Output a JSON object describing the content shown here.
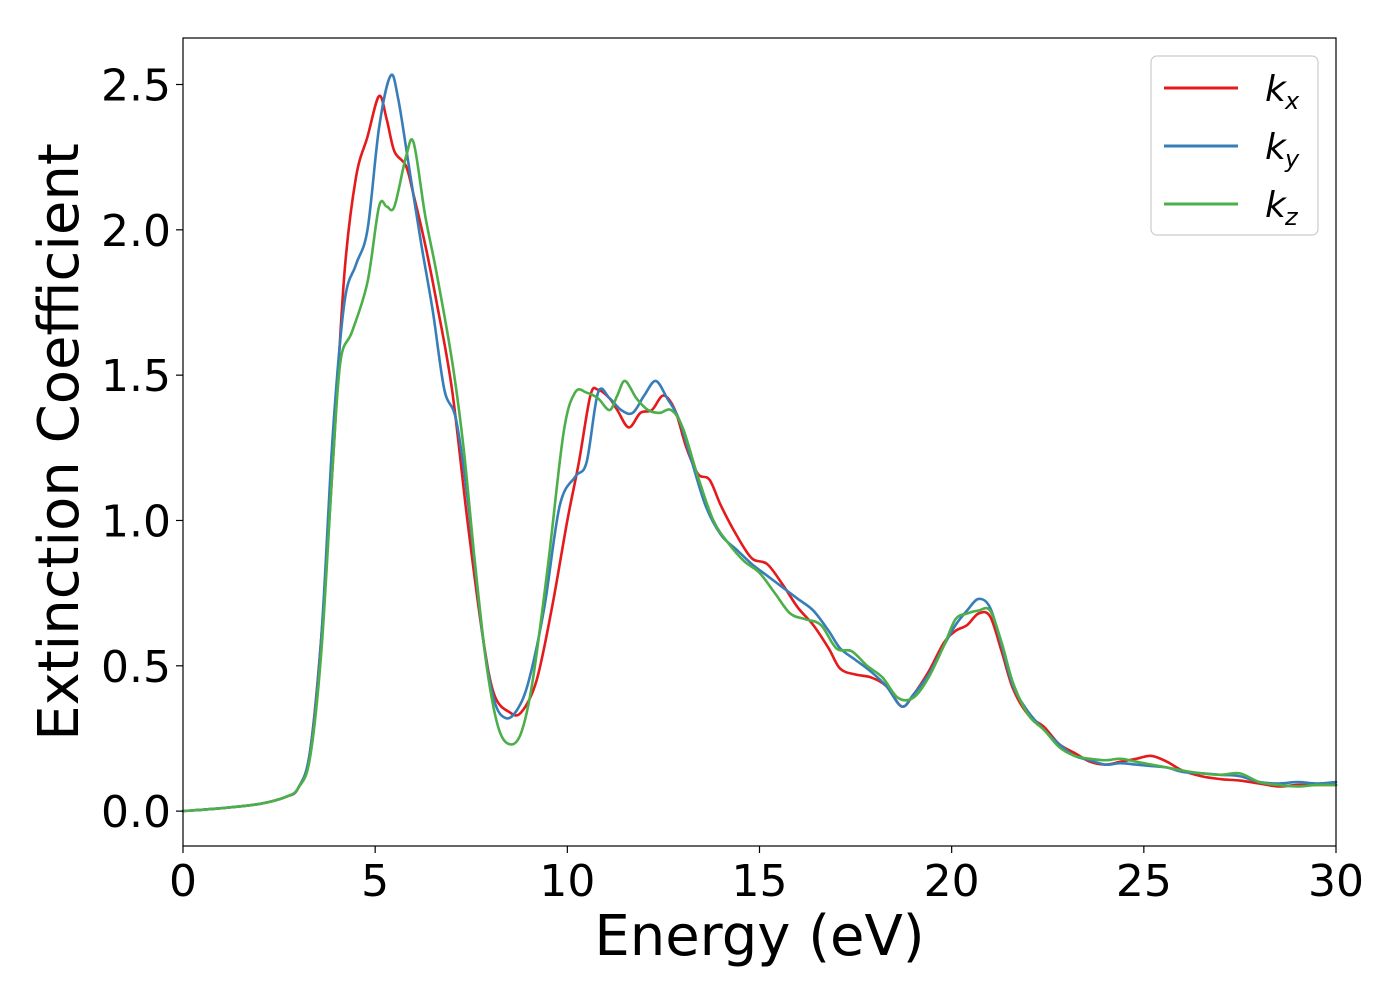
{
  "chart_data": {
    "type": "line",
    "xlabel": "Energy (eV)",
    "ylabel": "Extinction Coefficient",
    "xlim": [
      0,
      30
    ],
    "ylim": [
      -0.12,
      2.66
    ],
    "xticks": [
      0,
      5,
      10,
      15,
      20,
      25,
      30
    ],
    "xtick_labels": [
      "0",
      "5",
      "10",
      "15",
      "20",
      "25",
      "30"
    ],
    "yticks": [
      0.0,
      0.5,
      1.0,
      1.5,
      2.0,
      2.5
    ],
    "ytick_labels": [
      "0.0",
      "0.5",
      "1.0",
      "1.5",
      "2.0",
      "2.5"
    ],
    "grid": false,
    "legend_position": "top-right",
    "series": [
      {
        "name": "k_x",
        "legend_main": "k",
        "legend_sub": "x",
        "color": "#e41a1c",
        "points": [
          [
            0,
            0.0
          ],
          [
            1,
            0.01
          ],
          [
            2,
            0.025
          ],
          [
            2.7,
            0.05
          ],
          [
            3.0,
            0.08
          ],
          [
            3.3,
            0.2
          ],
          [
            3.6,
            0.6
          ],
          [
            3.9,
            1.2
          ],
          [
            4.2,
            1.85
          ],
          [
            4.5,
            2.18
          ],
          [
            4.8,
            2.32
          ],
          [
            5.1,
            2.46
          ],
          [
            5.3,
            2.38
          ],
          [
            5.5,
            2.27
          ],
          [
            5.8,
            2.22
          ],
          [
            6.0,
            2.12
          ],
          [
            6.3,
            1.95
          ],
          [
            6.6,
            1.75
          ],
          [
            7.0,
            1.45
          ],
          [
            7.4,
            1.0
          ],
          [
            7.8,
            0.6
          ],
          [
            8.1,
            0.4
          ],
          [
            8.5,
            0.34
          ],
          [
            8.8,
            0.34
          ],
          [
            9.2,
            0.45
          ],
          [
            9.6,
            0.7
          ],
          [
            10.0,
            1.0
          ],
          [
            10.3,
            1.2
          ],
          [
            10.6,
            1.43
          ],
          [
            10.8,
            1.45
          ],
          [
            11.1,
            1.42
          ],
          [
            11.3,
            1.38
          ],
          [
            11.6,
            1.32
          ],
          [
            11.9,
            1.37
          ],
          [
            12.2,
            1.38
          ],
          [
            12.5,
            1.43
          ],
          [
            12.8,
            1.38
          ],
          [
            13.1,
            1.25
          ],
          [
            13.4,
            1.16
          ],
          [
            13.7,
            1.14
          ],
          [
            14.0,
            1.05
          ],
          [
            14.4,
            0.95
          ],
          [
            14.8,
            0.87
          ],
          [
            15.2,
            0.85
          ],
          [
            15.6,
            0.78
          ],
          [
            16.0,
            0.7
          ],
          [
            16.4,
            0.64
          ],
          [
            16.8,
            0.56
          ],
          [
            17.1,
            0.49
          ],
          [
            17.5,
            0.47
          ],
          [
            17.9,
            0.46
          ],
          [
            18.3,
            0.43
          ],
          [
            18.7,
            0.36
          ],
          [
            19.0,
            0.4
          ],
          [
            19.4,
            0.48
          ],
          [
            19.8,
            0.58
          ],
          [
            20.1,
            0.62
          ],
          [
            20.4,
            0.64
          ],
          [
            20.7,
            0.68
          ],
          [
            21.0,
            0.67
          ],
          [
            21.3,
            0.55
          ],
          [
            21.6,
            0.42
          ],
          [
            22.0,
            0.33
          ],
          [
            22.4,
            0.29
          ],
          [
            22.8,
            0.23
          ],
          [
            23.2,
            0.2
          ],
          [
            23.6,
            0.17
          ],
          [
            24.0,
            0.16
          ],
          [
            24.4,
            0.17
          ],
          [
            24.8,
            0.18
          ],
          [
            25.2,
            0.19
          ],
          [
            25.6,
            0.17
          ],
          [
            26.0,
            0.14
          ],
          [
            26.5,
            0.12
          ],
          [
            27.0,
            0.11
          ],
          [
            27.5,
            0.105
          ],
          [
            28.0,
            0.095
          ],
          [
            28.5,
            0.085
          ],
          [
            29.0,
            0.09
          ],
          [
            29.5,
            0.09
          ],
          [
            30.0,
            0.09
          ]
        ]
      },
      {
        "name": "k_y",
        "legend_main": "k",
        "legend_sub": "y",
        "color": "#377eb8",
        "points": [
          [
            0,
            0.0
          ],
          [
            1,
            0.01
          ],
          [
            2,
            0.025
          ],
          [
            2.7,
            0.05
          ],
          [
            3.0,
            0.08
          ],
          [
            3.3,
            0.2
          ],
          [
            3.6,
            0.6
          ],
          [
            3.9,
            1.3
          ],
          [
            4.2,
            1.75
          ],
          [
            4.5,
            1.88
          ],
          [
            4.8,
            2.0
          ],
          [
            5.1,
            2.35
          ],
          [
            5.4,
            2.53
          ],
          [
            5.6,
            2.45
          ],
          [
            5.9,
            2.2
          ],
          [
            6.2,
            1.95
          ],
          [
            6.5,
            1.72
          ],
          [
            6.8,
            1.45
          ],
          [
            7.1,
            1.35
          ],
          [
            7.4,
            1.08
          ],
          [
            7.8,
            0.6
          ],
          [
            8.1,
            0.38
          ],
          [
            8.4,
            0.32
          ],
          [
            8.7,
            0.35
          ],
          [
            9.0,
            0.45
          ],
          [
            9.4,
            0.7
          ],
          [
            9.8,
            1.05
          ],
          [
            10.2,
            1.15
          ],
          [
            10.5,
            1.2
          ],
          [
            10.8,
            1.44
          ],
          [
            11.1,
            1.42
          ],
          [
            11.4,
            1.38
          ],
          [
            11.7,
            1.37
          ],
          [
            12.0,
            1.43
          ],
          [
            12.3,
            1.48
          ],
          [
            12.6,
            1.42
          ],
          [
            12.9,
            1.35
          ],
          [
            13.2,
            1.22
          ],
          [
            13.6,
            1.05
          ],
          [
            14.0,
            0.95
          ],
          [
            14.4,
            0.9
          ],
          [
            14.8,
            0.85
          ],
          [
            15.2,
            0.81
          ],
          [
            15.6,
            0.77
          ],
          [
            16.0,
            0.73
          ],
          [
            16.4,
            0.69
          ],
          [
            16.8,
            0.62
          ],
          [
            17.1,
            0.56
          ],
          [
            17.5,
            0.52
          ],
          [
            17.9,
            0.48
          ],
          [
            18.3,
            0.43
          ],
          [
            18.7,
            0.36
          ],
          [
            19.0,
            0.4
          ],
          [
            19.4,
            0.47
          ],
          [
            19.8,
            0.57
          ],
          [
            20.1,
            0.64
          ],
          [
            20.4,
            0.69
          ],
          [
            20.7,
            0.73
          ],
          [
            21.0,
            0.7
          ],
          [
            21.3,
            0.57
          ],
          [
            21.6,
            0.43
          ],
          [
            22.0,
            0.34
          ],
          [
            22.4,
            0.28
          ],
          [
            22.8,
            0.23
          ],
          [
            23.2,
            0.19
          ],
          [
            23.6,
            0.175
          ],
          [
            24.0,
            0.16
          ],
          [
            24.4,
            0.165
          ],
          [
            24.8,
            0.16
          ],
          [
            25.2,
            0.155
          ],
          [
            25.6,
            0.15
          ],
          [
            26.0,
            0.135
          ],
          [
            26.5,
            0.13
          ],
          [
            27.0,
            0.125
          ],
          [
            27.5,
            0.12
          ],
          [
            28.0,
            0.1
          ],
          [
            28.5,
            0.095
          ],
          [
            29.0,
            0.1
          ],
          [
            29.5,
            0.095
          ],
          [
            30.0,
            0.1
          ]
        ]
      },
      {
        "name": "k_z",
        "legend_main": "k",
        "legend_sub": "z",
        "color": "#4daf4a",
        "points": [
          [
            0,
            0.0
          ],
          [
            1,
            0.01
          ],
          [
            2,
            0.025
          ],
          [
            2.7,
            0.05
          ],
          [
            3.0,
            0.08
          ],
          [
            3.3,
            0.18
          ],
          [
            3.6,
            0.55
          ],
          [
            3.9,
            1.2
          ],
          [
            4.1,
            1.55
          ],
          [
            4.4,
            1.65
          ],
          [
            4.8,
            1.82
          ],
          [
            5.1,
            2.08
          ],
          [
            5.3,
            2.08
          ],
          [
            5.5,
            2.08
          ],
          [
            5.8,
            2.25
          ],
          [
            6.0,
            2.3
          ],
          [
            6.3,
            2.05
          ],
          [
            6.6,
            1.85
          ],
          [
            7.0,
            1.55
          ],
          [
            7.3,
            1.25
          ],
          [
            7.6,
            0.85
          ],
          [
            7.9,
            0.5
          ],
          [
            8.2,
            0.29
          ],
          [
            8.5,
            0.23
          ],
          [
            8.8,
            0.27
          ],
          [
            9.1,
            0.45
          ],
          [
            9.5,
            0.85
          ],
          [
            9.9,
            1.3
          ],
          [
            10.2,
            1.44
          ],
          [
            10.5,
            1.44
          ],
          [
            10.8,
            1.42
          ],
          [
            11.1,
            1.38
          ],
          [
            11.3,
            1.43
          ],
          [
            11.5,
            1.48
          ],
          [
            11.8,
            1.42
          ],
          [
            12.1,
            1.38
          ],
          [
            12.4,
            1.37
          ],
          [
            12.7,
            1.38
          ],
          [
            13.0,
            1.32
          ],
          [
            13.4,
            1.15
          ],
          [
            13.8,
            1.0
          ],
          [
            14.2,
            0.92
          ],
          [
            14.6,
            0.86
          ],
          [
            15.0,
            0.82
          ],
          [
            15.4,
            0.75
          ],
          [
            15.8,
            0.68
          ],
          [
            16.2,
            0.66
          ],
          [
            16.6,
            0.64
          ],
          [
            17.0,
            0.56
          ],
          [
            17.4,
            0.55
          ],
          [
            17.8,
            0.5
          ],
          [
            18.2,
            0.46
          ],
          [
            18.6,
            0.39
          ],
          [
            19.0,
            0.39
          ],
          [
            19.4,
            0.46
          ],
          [
            19.8,
            0.57
          ],
          [
            20.1,
            0.66
          ],
          [
            20.4,
            0.68
          ],
          [
            20.7,
            0.69
          ],
          [
            21.0,
            0.69
          ],
          [
            21.3,
            0.58
          ],
          [
            21.6,
            0.44
          ],
          [
            22.0,
            0.33
          ],
          [
            22.4,
            0.28
          ],
          [
            22.8,
            0.22
          ],
          [
            23.2,
            0.19
          ],
          [
            23.6,
            0.18
          ],
          [
            24.0,
            0.175
          ],
          [
            24.4,
            0.18
          ],
          [
            24.8,
            0.17
          ],
          [
            25.2,
            0.16
          ],
          [
            25.6,
            0.15
          ],
          [
            26.0,
            0.14
          ],
          [
            26.5,
            0.13
          ],
          [
            27.0,
            0.125
          ],
          [
            27.5,
            0.13
          ],
          [
            28.0,
            0.1
          ],
          [
            28.5,
            0.09
          ],
          [
            29.0,
            0.085
          ],
          [
            29.5,
            0.09
          ],
          [
            30.0,
            0.09
          ]
        ]
      }
    ]
  }
}
